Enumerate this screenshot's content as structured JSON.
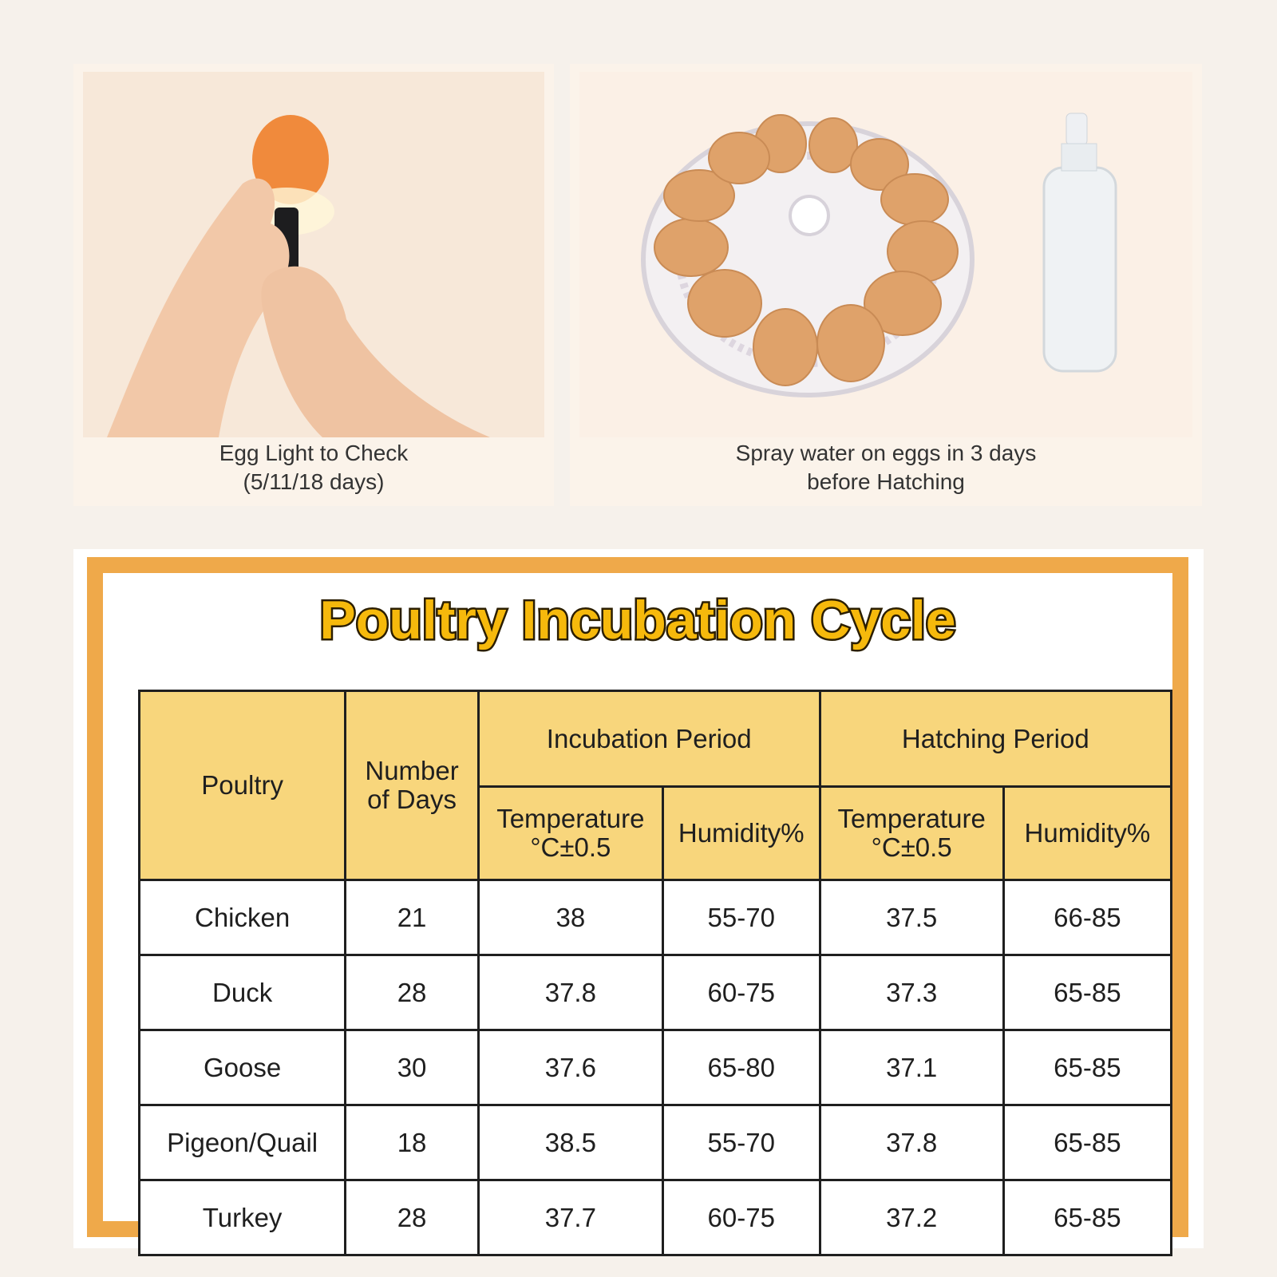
{
  "cards": [
    {
      "caption": [
        "Egg Light to Check",
        "(5/11/18 days)"
      ]
    },
    {
      "caption": [
        "Spray water on eggs in 3 days",
        "before Hatching"
      ]
    }
  ],
  "table": {
    "title": "Poultry Incubation Cycle",
    "header": {
      "poultry": "Poultry",
      "days": [
        "Number",
        "of Days"
      ],
      "incubation": "Incubation Period",
      "hatching": "Hatching Period",
      "temperature": [
        "Temperature",
        "°C±0.5"
      ],
      "humidity": "Humidity%"
    },
    "rows": [
      [
        "Chicken",
        21,
        38,
        "55-70",
        37.5,
        "66-85"
      ],
      [
        "Duck",
        28,
        37.8,
        "60-75",
        37.3,
        "65-85"
      ],
      [
        "Goose",
        30,
        37.6,
        "65-80",
        37.1,
        "65-85"
      ],
      [
        "Pigeon/Quail",
        18,
        38.5,
        "55-70",
        37.8,
        "65-85"
      ],
      [
        "Turkey",
        28,
        37.7,
        "60-75",
        37.2,
        "65-85"
      ]
    ]
  }
}
